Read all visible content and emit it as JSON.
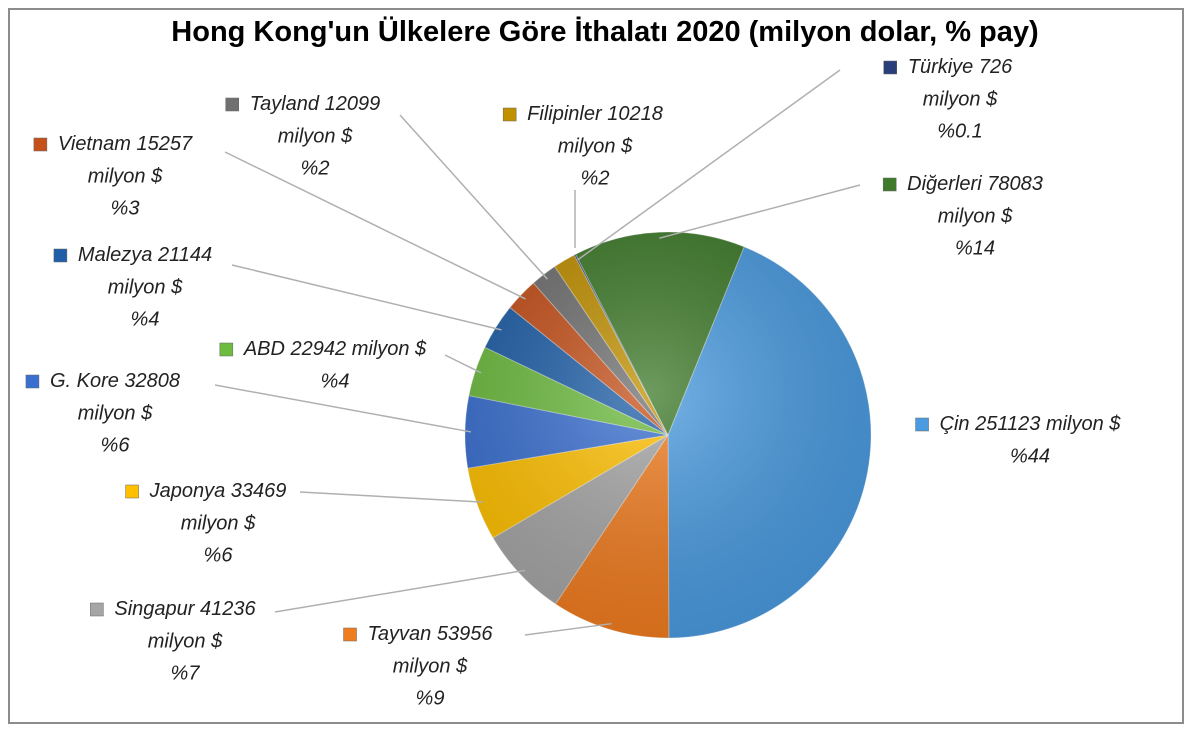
{
  "chart_data": {
    "type": "pie",
    "title": "Hong Kong'un Ülkelere Göre İthalatı 2020 (milyon dolar, % pay)",
    "unit": "milyon $",
    "categories": [
      "Çin",
      "Tayvan",
      "Singapur",
      "Japonya",
      "G. Kore",
      "ABD",
      "Malezya",
      "Vietnam",
      "Tayland",
      "Filipinler",
      "Türkiye",
      "Diğerleri"
    ],
    "values": [
      251123,
      53956,
      41236,
      33469,
      32808,
      22942,
      21144,
      15257,
      12099,
      10218,
      726,
      78083
    ],
    "percent_labels": [
      "%44",
      "%9",
      "%7",
      "%6",
      "%6",
      "%4",
      "%4",
      "%3",
      "%2",
      "%2",
      "%0.1",
      "%14"
    ],
    "colors": [
      "#4a9be0",
      "#f07c20",
      "#a5a5a5",
      "#ffc000",
      "#3a6fd0",
      "#6dbb3f",
      "#1f5fa8",
      "#c5501a",
      "#707070",
      "#c09000",
      "#2a3f7a",
      "#3e7a2a"
    ]
  }
}
